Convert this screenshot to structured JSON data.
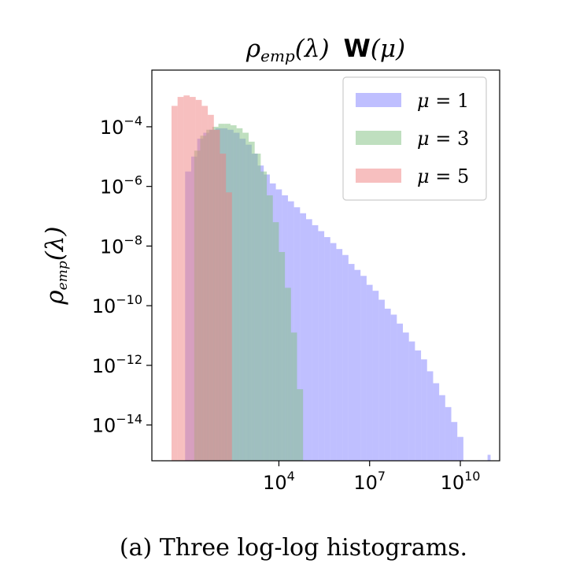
{
  "chart_data": {
    "type": "histogram",
    "title": {
      "part1_main": "ρ",
      "part1_sub": "emp",
      "part1_arg": "(λ)",
      "part2_bold": "W",
      "part2_arg": "(μ)"
    },
    "ylabel": {
      "main": "ρ",
      "sub": "emp",
      "arg": "(λ)"
    },
    "x_scale": "log",
    "y_scale": "log",
    "x_ticks": [
      {
        "base": "10",
        "exp": "4",
        "log10": 4
      },
      {
        "base": "10",
        "exp": "7",
        "log10": 7
      },
      {
        "base": "10",
        "exp": "10",
        "log10": 10
      }
    ],
    "y_ticks": [
      {
        "base": "10",
        "exp": "−4",
        "log10": -4
      },
      {
        "base": "10",
        "exp": "−6",
        "log10": -6
      },
      {
        "base": "10",
        "exp": "−8",
        "log10": -8
      },
      {
        "base": "10",
        "exp": "−10",
        "log10": -10
      },
      {
        "base": "10",
        "exp": "−12",
        "log10": -12
      },
      {
        "base": "10",
        "exp": "−14",
        "log10": -14
      }
    ],
    "xlim_log10": [
      -0.2,
      11.3
    ],
    "ylim_log10": [
      -15.2,
      -2.1
    ],
    "legend_position": "upper right",
    "series": [
      {
        "name": "μ = 1",
        "label_var": "μ",
        "label_val": "1",
        "color": "#7f7fff",
        "opacity": 0.5,
        "bins_log10": [
          [
            0.9,
            1.1,
            -5.5
          ],
          [
            1.1,
            1.3,
            -5.0
          ],
          [
            1.3,
            1.5,
            -4.4
          ],
          [
            1.5,
            1.7,
            -4.2
          ],
          [
            1.7,
            1.9,
            -4.1
          ],
          [
            1.9,
            2.1,
            -4.05
          ],
          [
            2.1,
            2.3,
            -4.05
          ],
          [
            2.3,
            2.5,
            -4.1
          ],
          [
            2.5,
            2.7,
            -4.2
          ],
          [
            2.7,
            2.9,
            -4.4
          ],
          [
            2.9,
            3.1,
            -4.6
          ],
          [
            3.1,
            3.3,
            -4.9
          ],
          [
            3.3,
            3.5,
            -5.3
          ],
          [
            3.5,
            3.7,
            -5.6
          ],
          [
            3.7,
            3.9,
            -5.9
          ],
          [
            3.9,
            4.1,
            -6.1
          ],
          [
            4.1,
            4.3,
            -6.3
          ],
          [
            4.3,
            4.5,
            -6.5
          ],
          [
            4.5,
            4.7,
            -6.7
          ],
          [
            4.7,
            4.9,
            -6.9
          ],
          [
            4.9,
            5.1,
            -7.1
          ],
          [
            5.1,
            5.3,
            -7.3
          ],
          [
            5.3,
            5.5,
            -7.5
          ],
          [
            5.5,
            5.7,
            -7.7
          ],
          [
            5.7,
            5.9,
            -7.9
          ],
          [
            5.9,
            6.1,
            -8.1
          ],
          [
            6.1,
            6.3,
            -8.3
          ],
          [
            6.3,
            6.5,
            -8.6
          ],
          [
            6.5,
            6.7,
            -8.8
          ],
          [
            6.7,
            6.9,
            -9.0
          ],
          [
            6.9,
            7.1,
            -9.3
          ],
          [
            7.1,
            7.3,
            -9.5
          ],
          [
            7.3,
            7.5,
            -9.8
          ],
          [
            7.5,
            7.7,
            -10.1
          ],
          [
            7.7,
            7.9,
            -10.3
          ],
          [
            7.9,
            8.1,
            -10.6
          ],
          [
            8.1,
            8.3,
            -10.9
          ],
          [
            8.3,
            8.5,
            -11.2
          ],
          [
            8.5,
            8.7,
            -11.5
          ],
          [
            8.7,
            8.9,
            -11.8
          ],
          [
            8.9,
            9.1,
            -12.2
          ],
          [
            9.1,
            9.3,
            -12.6
          ],
          [
            9.3,
            9.5,
            -13.0
          ],
          [
            9.5,
            9.7,
            -13.4
          ],
          [
            9.7,
            9.9,
            -13.9
          ],
          [
            9.9,
            10.1,
            -14.4
          ],
          [
            10.9,
            11.0,
            -15.0
          ],
          [
            11.1,
            11.2,
            -15.5
          ]
        ]
      },
      {
        "name": "μ = 3",
        "label_var": "μ",
        "label_val": "3",
        "color": "#80c080",
        "opacity": 0.5,
        "bins_log10": [
          [
            1.2,
            1.4,
            -4.8
          ],
          [
            1.4,
            1.6,
            -4.3
          ],
          [
            1.6,
            1.8,
            -4.1
          ],
          [
            1.8,
            2.0,
            -4.0
          ],
          [
            2.0,
            2.2,
            -3.9
          ],
          [
            2.2,
            2.4,
            -3.9
          ],
          [
            2.4,
            2.6,
            -3.95
          ],
          [
            2.6,
            2.8,
            -4.05
          ],
          [
            2.8,
            3.0,
            -4.2
          ],
          [
            3.0,
            3.2,
            -4.5
          ],
          [
            3.2,
            3.4,
            -4.9
          ],
          [
            3.4,
            3.6,
            -5.5
          ],
          [
            3.6,
            3.8,
            -6.3
          ],
          [
            3.8,
            4.0,
            -7.2
          ],
          [
            4.0,
            4.2,
            -8.2
          ],
          [
            4.2,
            4.4,
            -9.4
          ],
          [
            4.4,
            4.6,
            -10.9
          ],
          [
            4.6,
            4.8,
            -12.8
          ]
        ]
      },
      {
        "name": "μ = 5",
        "label_var": "μ",
        "label_val": "5",
        "color": "#f08080",
        "opacity": 0.5,
        "bins_log10": [
          [
            0.45,
            0.65,
            -3.3
          ],
          [
            0.65,
            0.85,
            -3.0
          ],
          [
            0.85,
            1.05,
            -2.95
          ],
          [
            1.05,
            1.25,
            -3.0
          ],
          [
            1.25,
            1.45,
            -3.1
          ],
          [
            1.45,
            1.65,
            -3.3
          ],
          [
            1.65,
            1.85,
            -3.6
          ],
          [
            1.85,
            2.05,
            -4.1
          ],
          [
            2.05,
            2.25,
            -4.9
          ],
          [
            2.25,
            2.45,
            -6.2
          ]
        ]
      }
    ]
  },
  "caption": "(a) Three log-log histograms."
}
